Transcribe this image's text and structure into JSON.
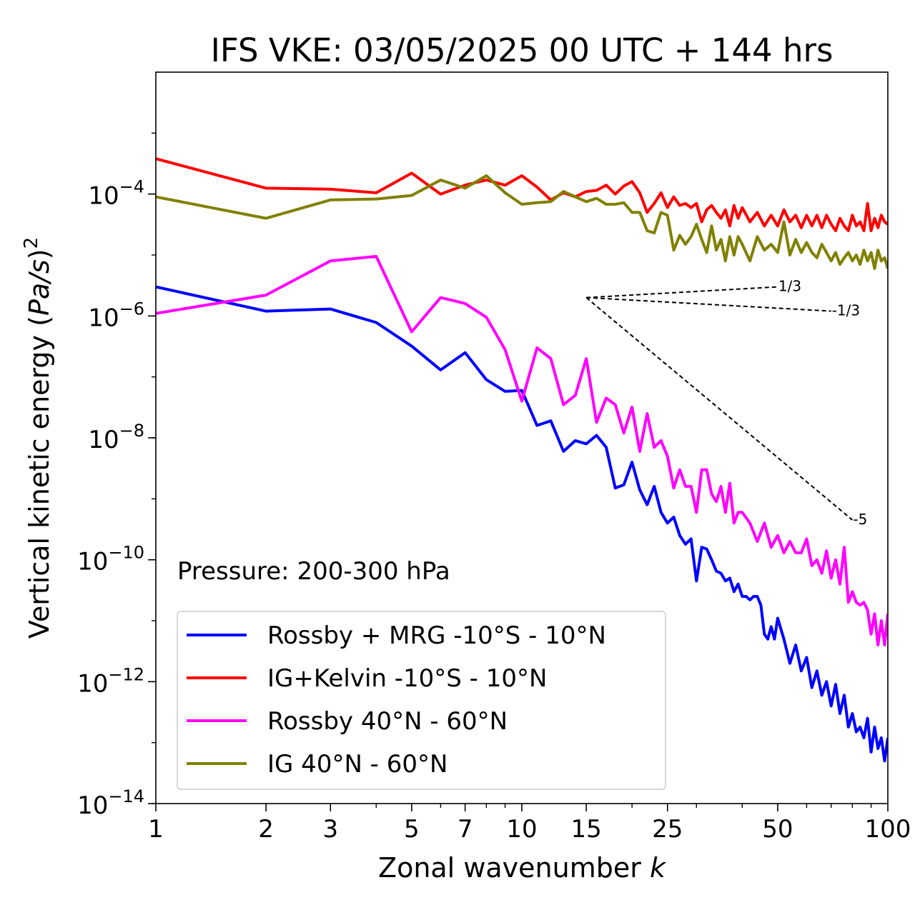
{
  "chart_data": {
    "type": "line",
    "title": "IFS VKE: 03/05/2025 00 UTC + 144 hrs",
    "xlabel": "Zonal wavenumber",
    "xlabel_var": "k",
    "ylabel_main": "Vertical kinetic energy (",
    "ylabel_var": "Pa/s",
    "ylabel_close": ")",
    "ylabel_sup": "2",
    "annotation": "Pressure: 200-300 hPa",
    "xscale": "log",
    "yscale": "log",
    "xlim": [
      1,
      100
    ],
    "ylim": [
      1e-14,
      0.01
    ],
    "grid": false,
    "legend_position": "lower-left",
    "x_ticks": [
      {
        "value": 1,
        "label": "1"
      },
      {
        "value": 2,
        "label": "2"
      },
      {
        "value": 3,
        "label": "3"
      },
      {
        "value": 5,
        "label": "5"
      },
      {
        "value": 7,
        "label": "7"
      },
      {
        "value": 10,
        "label": "10"
      },
      {
        "value": 15,
        "label": "15"
      },
      {
        "value": 25,
        "label": "25"
      },
      {
        "value": 50,
        "label": "50"
      },
      {
        "value": 100,
        "label": "100"
      }
    ],
    "y_ticks": [
      {
        "exp": -14,
        "base": "10",
        "sup": "−14"
      },
      {
        "exp": -12,
        "base": "10",
        "sup": "−12"
      },
      {
        "exp": -10,
        "base": "10",
        "sup": "−10"
      },
      {
        "exp": -8,
        "base": "10",
        "sup": "−8"
      },
      {
        "exp": -6,
        "base": "10",
        "sup": "−6"
      },
      {
        "exp": -4,
        "base": "10",
        "sup": "−4"
      }
    ],
    "reference_slopes": [
      {
        "label": "1/3",
        "x": [
          15,
          50
        ],
        "y": [
          2e-06,
          3e-06
        ]
      },
      {
        "label": "-1/3",
        "x": [
          15,
          70
        ],
        "y": [
          2e-06,
          1.2e-06
        ]
      },
      {
        "label": "-5",
        "x": [
          15,
          80
        ],
        "y": [
          2e-06,
          4.5e-10
        ]
      }
    ],
    "series": [
      {
        "name": "Rossby + MRG -10°S - 10°N",
        "color": "#0000ff",
        "x": [
          1,
          2,
          3,
          4,
          5,
          6,
          7,
          8,
          9,
          10,
          11,
          12,
          13,
          14,
          15,
          16,
          17,
          18,
          19,
          20,
          21,
          22,
          23,
          24,
          25,
          26,
          27,
          28,
          29,
          30,
          31,
          32,
          33,
          34,
          35,
          36,
          37,
          38,
          39,
          40,
          41,
          42,
          43,
          44,
          45,
          46,
          47,
          48,
          49,
          50,
          52,
          54,
          56,
          58,
          60,
          62,
          64,
          66,
          68,
          70,
          72,
          74,
          76,
          78,
          80,
          82,
          84,
          86,
          88,
          90,
          92,
          94,
          96,
          98,
          100
        ],
        "y": [
          3e-06,
          1.2e-06,
          1.3e-06,
          7.8e-07,
          3.2e-07,
          1.3e-07,
          2.5e-07,
          9e-08,
          5.8e-08,
          6e-08,
          1.6e-08,
          1.9e-08,
          6e-09,
          9e-09,
          8e-09,
          1.1e-08,
          7e-09,
          1.5e-09,
          1.7e-09,
          4e-09,
          1.4e-09,
          8e-10,
          1.6e-09,
          6e-10,
          4e-10,
          5e-10,
          2.5e-10,
          1.8e-10,
          2.2e-10,
          4.5e-11,
          1.6e-10,
          1.5e-10,
          1e-10,
          6.5e-11,
          6e-11,
          4.5e-11,
          5e-11,
          3e-11,
          4e-11,
          2.5e-11,
          2.5e-11,
          2.2e-11,
          2.5e-11,
          2.5e-11,
          1.8e-11,
          6e-12,
          5e-12,
          8e-12,
          5e-12,
          1.1e-11,
          5e-12,
          2e-12,
          4e-12,
          1.5e-12,
          2.5e-12,
          8e-13,
          1.5e-12,
          6e-13,
          1e-12,
          4e-13,
          9e-13,
          3e-13,
          6e-13,
          1.8e-13,
          3e-13,
          1.5e-13,
          1.8e-13,
          1.2e-13,
          2.5e-13,
          7e-14,
          1.8e-13,
          8e-14,
          1.2e-13,
          5e-14,
          1.2e-13
        ]
      },
      {
        "name": "IG+Kelvin -10°S - 10°N",
        "color": "#ff0000",
        "x": [
          1,
          2,
          3,
          4,
          5,
          6,
          7,
          8,
          9,
          10,
          11,
          12,
          13,
          14,
          15,
          16,
          17,
          18,
          19,
          20,
          21,
          22,
          23,
          24,
          25,
          26,
          27,
          28,
          29,
          30,
          31,
          32,
          33,
          34,
          35,
          36,
          37,
          38,
          39,
          40,
          42,
          44,
          46,
          48,
          50,
          52,
          54,
          56,
          58,
          60,
          62,
          64,
          66,
          68,
          70,
          72,
          74,
          76,
          78,
          80,
          82,
          84,
          86,
          88,
          90,
          92,
          94,
          96,
          98,
          100
        ],
        "y": [
          0.00038,
          0.000125,
          0.00012,
          0.000105,
          0.00022,
          0.0001,
          0.00014,
          0.00017,
          0.00014,
          0.0002,
          0.00013,
          8e-05,
          0.000105,
          9e-05,
          0.00011,
          0.000115,
          0.00014,
          0.0001,
          0.000135,
          0.00016,
          0.000105,
          5e-05,
          7e-05,
          0.000105,
          6e-05,
          9e-05,
          6.5e-05,
          7e-05,
          6e-05,
          7e-05,
          3.5e-05,
          5.5e-05,
          6.5e-05,
          5e-05,
          4e-05,
          5.5e-05,
          3e-05,
          6.5e-05,
          4e-05,
          6e-05,
          3.5e-05,
          5e-05,
          3e-05,
          4.5e-05,
          3e-05,
          5.5e-05,
          3.5e-05,
          4.5e-05,
          2.8e-05,
          4.5e-05,
          3e-05,
          4.5e-05,
          2.8e-05,
          4.5e-05,
          3.2e-05,
          2.5e-05,
          4e-05,
          3e-05,
          2.5e-05,
          4.5e-05,
          3e-05,
          3.5e-05,
          2.5e-05,
          7e-05,
          2.5e-05,
          4e-05,
          2.8e-05,
          4.5e-05,
          3.5e-05,
          3.2e-05
        ]
      },
      {
        "name": "Rossby 40°N - 60°N",
        "color": "#ff00ff",
        "x": [
          1,
          2,
          3,
          4,
          5,
          6,
          7,
          8,
          9,
          10,
          11,
          12,
          13,
          14,
          15,
          16,
          17,
          18,
          19,
          20,
          21,
          22,
          23,
          24,
          25,
          26,
          27,
          28,
          29,
          30,
          31,
          32,
          33,
          34,
          35,
          36,
          37,
          38,
          39,
          40,
          42,
          44,
          46,
          48,
          50,
          52,
          54,
          56,
          58,
          60,
          62,
          64,
          66,
          68,
          70,
          72,
          74,
          76,
          78,
          80,
          82,
          84,
          86,
          88,
          90,
          92,
          94,
          96,
          98,
          100
        ],
        "y": [
          1.1e-06,
          2.2e-06,
          8e-06,
          9.5e-06,
          5.5e-07,
          2e-06,
          1.6e-06,
          9.5e-07,
          2.8e-07,
          4e-08,
          3e-07,
          2e-07,
          3.5e-08,
          5e-08,
          2e-07,
          1.8e-08,
          4.5e-08,
          3.5e-08,
          1.2e-08,
          3.2e-08,
          6e-09,
          2.5e-08,
          7e-09,
          9e-09,
          5e-09,
          1.5e-09,
          3e-09,
          1.6e-09,
          1.6e-09,
          6e-10,
          3e-09,
          3e-09,
          1.2e-09,
          9e-10,
          1.6e-09,
          6e-10,
          1.8e-09,
          4e-10,
          6e-10,
          6e-10,
          4e-10,
          2e-10,
          4e-10,
          1.6e-10,
          2.5e-10,
          1.3e-10,
          2e-10,
          1.3e-10,
          1.3e-10,
          2.2e-10,
          8e-11,
          1e-10,
          6e-11,
          1.4e-10,
          5e-11,
          1e-10,
          4e-11,
          1.6e-10,
          2e-11,
          3e-11,
          2e-11,
          1.8e-11,
          2e-11,
          1.5e-11,
          6e-12,
          1.3e-11,
          4e-12,
          1e-11,
          4e-12,
          1.3e-11
        ]
      },
      {
        "name": "IG 40°N - 60°N",
        "color": "#808000",
        "x": [
          1,
          2,
          3,
          4,
          5,
          6,
          7,
          8,
          9,
          10,
          11,
          12,
          13,
          14,
          15,
          16,
          17,
          18,
          19,
          20,
          21,
          22,
          23,
          24,
          25,
          26,
          27,
          28,
          29,
          30,
          31,
          32,
          33,
          34,
          35,
          36,
          37,
          38,
          39,
          40,
          42,
          44,
          46,
          48,
          50,
          52,
          54,
          56,
          58,
          60,
          62,
          64,
          66,
          68,
          70,
          72,
          74,
          76,
          78,
          80,
          82,
          84,
          86,
          88,
          90,
          92,
          94,
          96,
          98,
          100
        ],
        "y": [
          9e-05,
          4e-05,
          8e-05,
          8.3e-05,
          9.5e-05,
          0.00017,
          0.000125,
          0.0002,
          0.000105,
          6.8e-05,
          7.2e-05,
          7.5e-05,
          0.00011,
          9e-05,
          7.5e-05,
          8.5e-05,
          6.8e-05,
          6.8e-05,
          7.2e-05,
          5e-05,
          5e-05,
          2.5e-05,
          2.3e-05,
          5e-05,
          4.5e-05,
          1.2e-05,
          2.1e-05,
          1.5e-05,
          2e-05,
          3.2e-05,
          1.8e-05,
          1.1e-05,
          3e-05,
          1.2e-05,
          1.8e-05,
          8e-06,
          2e-05,
          1e-05,
          2e-05,
          1.5e-05,
          8e-06,
          2e-05,
          1.2e-05,
          1.5e-05,
          1.1e-05,
          3.5e-05,
          1e-05,
          1.8e-05,
          1.1e-05,
          1.6e-05,
          1.1e-05,
          9e-06,
          1.5e-05,
          1.1e-05,
          8e-06,
          1.1e-05,
          7e-06,
          9e-06,
          1.1e-05,
          8e-06,
          1e-05,
          7e-06,
          1.2e-05,
          8e-06,
          1.1e-05,
          6e-06,
          1.2e-05,
          8e-06,
          9e-06,
          6e-06
        ]
      }
    ]
  }
}
